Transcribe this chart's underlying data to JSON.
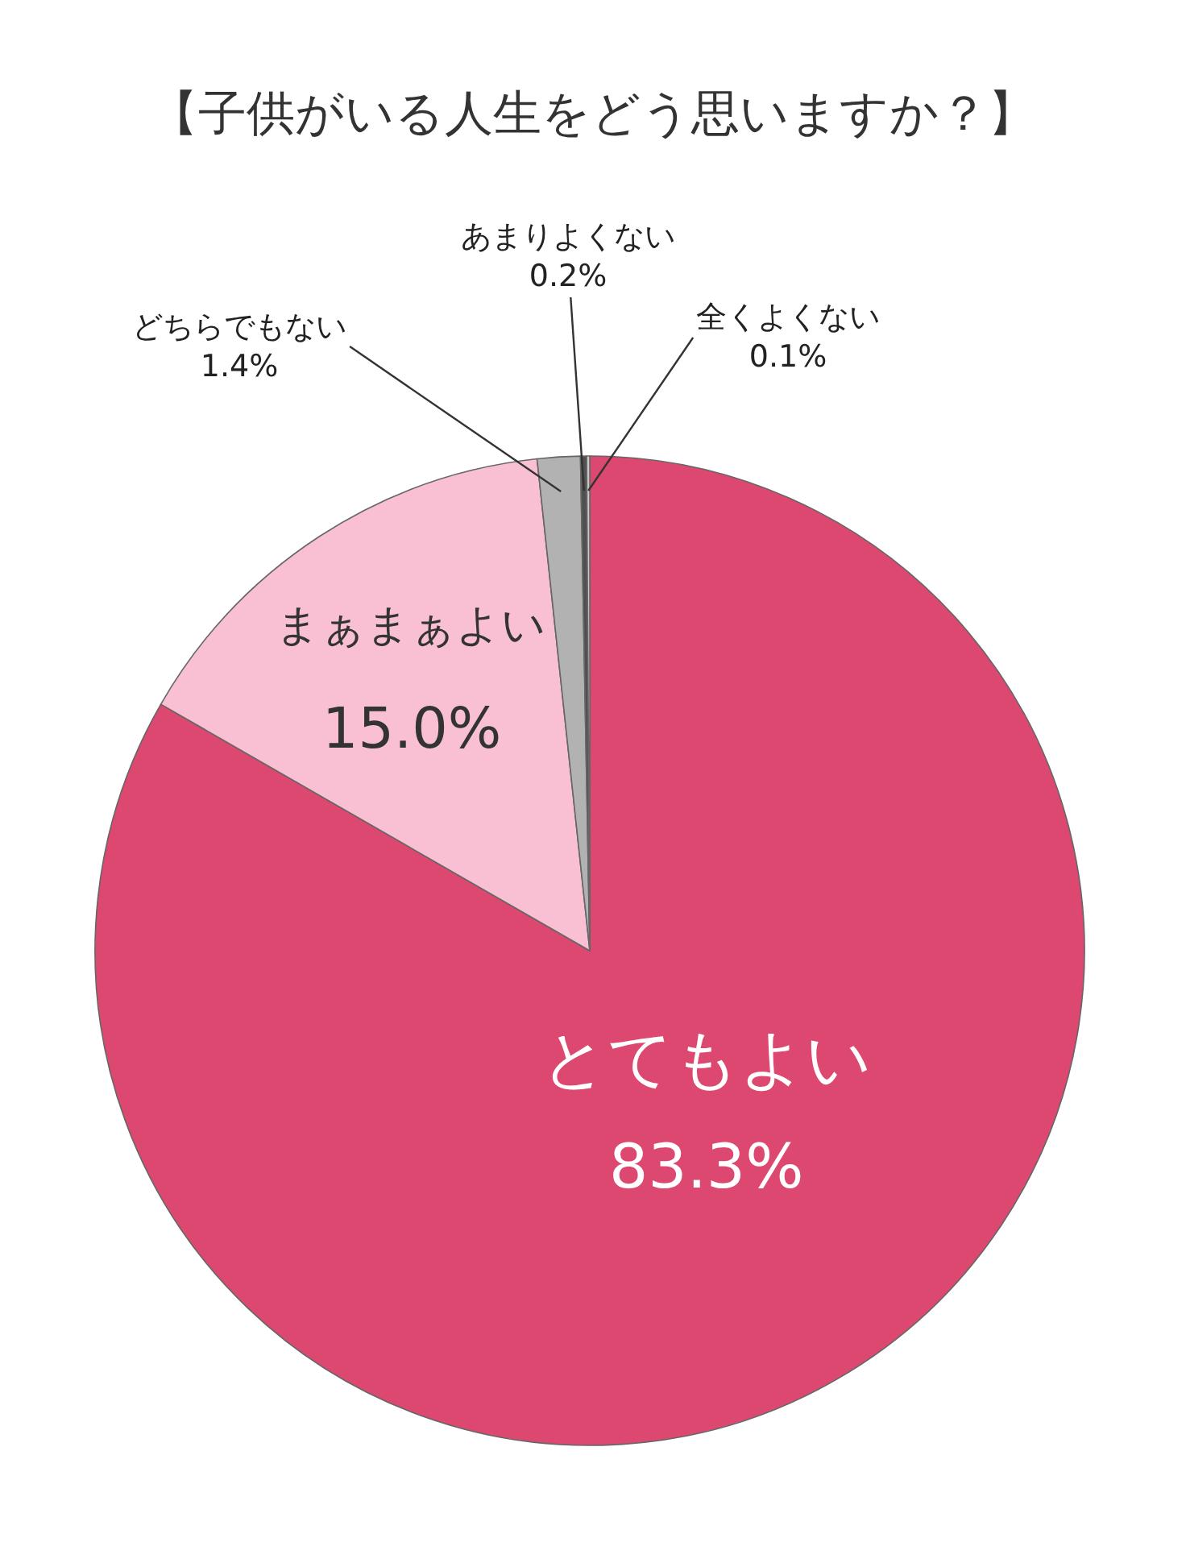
{
  "chart_data": {
    "type": "pie",
    "title": "【子供がいる人生をどう思いますか？】",
    "categories": [
      "とてもよい",
      "まぁまぁよい",
      "どちらでもない",
      "あまりよくない",
      "全くよくない"
    ],
    "values": [
      83.3,
      15.0,
      1.4,
      0.2,
      0.1
    ],
    "value_labels": [
      "83.3%",
      "15.0%",
      "1.4%",
      "0.2%",
      "0.1%"
    ],
    "colors": [
      "#dc4870",
      "#f9bfd3",
      "#b2b2b2",
      "#505050",
      "#cccccc"
    ],
    "legend": false
  }
}
